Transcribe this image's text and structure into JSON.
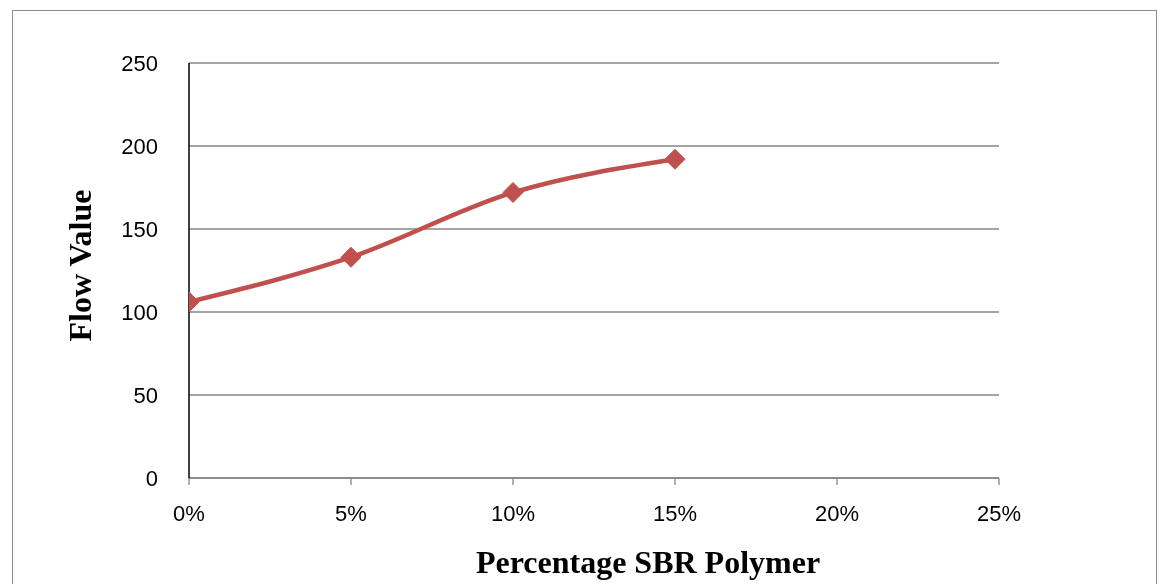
{
  "chart_data": {
    "type": "line",
    "xlabel": "Percentage SBR Polymer",
    "ylabel": "Flow Value",
    "x": [
      0,
      5,
      10,
      15
    ],
    "series": [
      {
        "color": "#c0504d",
        "values": [
          106,
          133,
          172,
          192
        ]
      }
    ],
    "xlim": [
      0,
      25
    ],
    "xticks": [
      {
        "value": 0,
        "label": "0%"
      },
      {
        "value": 5,
        "label": "5%"
      },
      {
        "value": 10,
        "label": "10%"
      },
      {
        "value": 15,
        "label": "15%"
      },
      {
        "value": 20,
        "label": "20%"
      },
      {
        "value": 25,
        "label": "25%"
      }
    ],
    "ylim": [
      0,
      250
    ],
    "yticks": [
      0,
      50,
      100,
      150,
      200,
      250
    ],
    "grid": "y",
    "marker": "diamond",
    "line_style": "solid"
  }
}
